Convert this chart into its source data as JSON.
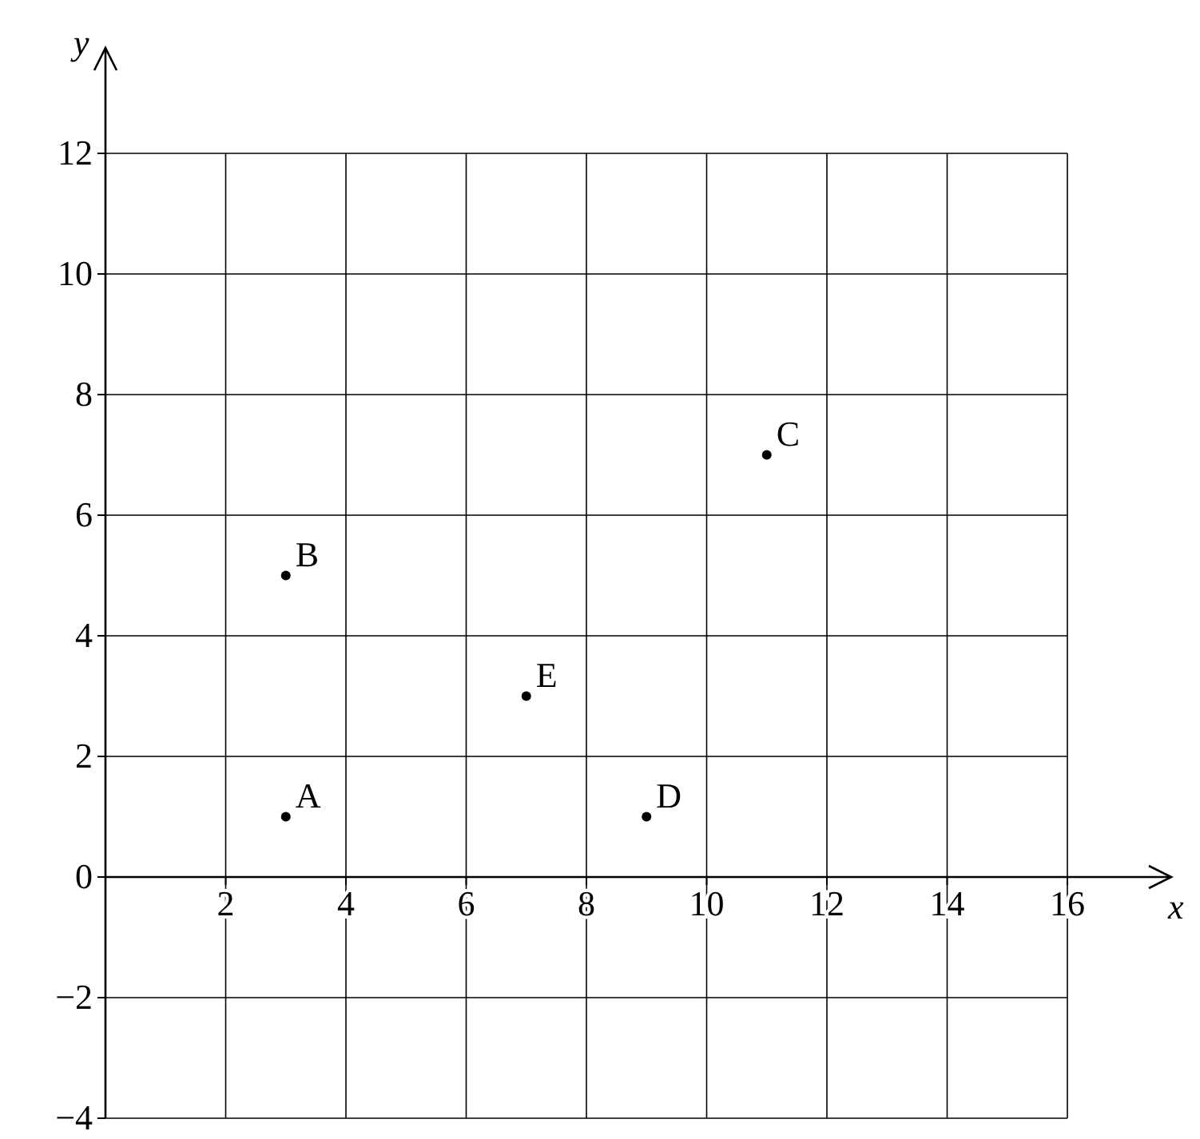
{
  "chart_data": {
    "type": "scatter",
    "xlabel": "x",
    "ylabel": "y",
    "x": [
      3,
      3,
      11,
      9,
      7
    ],
    "series": [
      {
        "color": "#000000",
        "values": [
          1,
          5,
          7,
          1,
          3
        ]
      }
    ],
    "xlim": [
      0,
      16
    ],
    "ylim": [
      -4,
      12
    ],
    "xticks": [
      2,
      4,
      6,
      8,
      10,
      12,
      14,
      16
    ],
    "yticks": [
      {
        "value": -4,
        "label": "−4"
      },
      {
        "value": -2,
        "label": "−2"
      },
      0,
      2,
      4,
      6,
      8,
      10,
      12
    ],
    "grid": true,
    "marker": "circle",
    "annotations": [
      {
        "text": "A",
        "x": 3,
        "y": 1
      },
      {
        "text": "B",
        "x": 3,
        "y": 5
      },
      {
        "text": "C",
        "x": 11,
        "y": 7
      },
      {
        "text": "D",
        "x": 9,
        "y": 1
      },
      {
        "text": "E",
        "x": 7,
        "y": 3
      }
    ]
  }
}
